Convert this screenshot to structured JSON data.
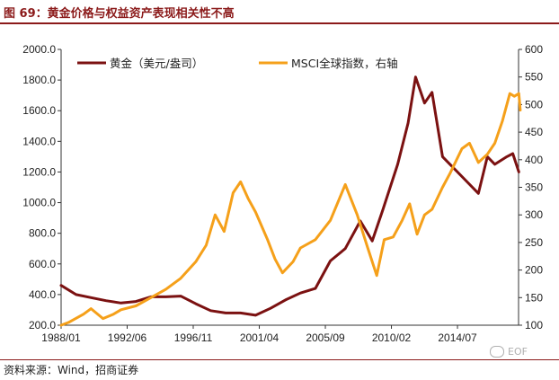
{
  "figure": {
    "title": "图 69：黄金价格与权益资产表现相关性不高",
    "source": "资料来源：Wind，招商证券",
    "watermark": "EOF"
  },
  "colors": {
    "gold": "#7b1111",
    "msci": "#f5a01a",
    "accent": "#8b1a1a"
  },
  "chart_data": {
    "type": "line",
    "title": "",
    "x_tick_labels": [
      "1988/01",
      "1992/06",
      "1996/11",
      "2001/04",
      "2005/09",
      "2010/02",
      "2014/07"
    ],
    "xlim": [
      "1988/01",
      "2018/08"
    ],
    "y_left": {
      "ylim": [
        200,
        2000
      ],
      "ticks": [
        "200.0",
        "400.0",
        "600.0",
        "800.0",
        "1000.0",
        "1200.0",
        "1400.0",
        "1600.0",
        "1800.0",
        "2000.0"
      ]
    },
    "y_right": {
      "ylim": [
        100,
        600
      ],
      "ticks": [
        "100",
        "150",
        "200",
        "250",
        "300",
        "350",
        "400",
        "450",
        "500",
        "550",
        "600"
      ]
    },
    "legend_position": "top-left",
    "series": [
      {
        "name": "黄金（美元/盎司）",
        "axis": "left",
        "x": [
          1988.0,
          1989.0,
          1990.0,
          1991.0,
          1992.0,
          1993.0,
          1994.0,
          1995.0,
          1996.0,
          1997.0,
          1998.0,
          1999.0,
          2000.0,
          2001.0,
          2002.0,
          2003.0,
          2004.0,
          2005.0,
          2006.0,
          2007.0,
          2008.0,
          2008.8,
          2009.5,
          2010.5,
          2011.2,
          2011.7,
          2012.3,
          2012.8,
          2013.5,
          2014.0,
          2015.0,
          2015.9,
          2016.5,
          2017.0,
          2017.8,
          2018.2,
          2018.6
        ],
        "y": [
          460,
          400,
          380,
          360,
          345,
          355,
          385,
          385,
          390,
          340,
          295,
          280,
          280,
          265,
          310,
          365,
          410,
          440,
          620,
          700,
          880,
          750,
          950,
          1250,
          1520,
          1820,
          1650,
          1720,
          1300,
          1250,
          1150,
          1060,
          1300,
          1250,
          1300,
          1320,
          1200
        ]
      },
      {
        "name": "MSCI全球指数，右轴",
        "axis": "right",
        "x": [
          1988.0,
          1988.5,
          1989.5,
          1990.0,
          1990.8,
          1991.5,
          1992.0,
          1993.0,
          1994.0,
          1995.0,
          1996.0,
          1997.0,
          1997.7,
          1998.3,
          1998.9,
          1999.5,
          2000.0,
          2000.5,
          2001.0,
          2001.8,
          2002.3,
          2002.8,
          2003.5,
          2004.0,
          2005.0,
          2006.0,
          2007.0,
          2007.8,
          2008.5,
          2009.1,
          2009.6,
          2010.2,
          2010.8,
          2011.3,
          2011.8,
          2012.3,
          2012.8,
          2013.5,
          2014.0,
          2014.8,
          2015.3,
          2015.9,
          2016.5,
          2017.0,
          2017.5,
          2018.0,
          2018.3,
          2018.6,
          2018.7
        ],
        "y": [
          100,
          105,
          120,
          130,
          112,
          120,
          128,
          135,
          150,
          165,
          185,
          215,
          245,
          300,
          270,
          340,
          360,
          330,
          305,
          255,
          220,
          195,
          215,
          240,
          255,
          290,
          355,
          300,
          240,
          190,
          255,
          260,
          290,
          320,
          265,
          300,
          310,
          350,
          375,
          420,
          430,
          395,
          410,
          430,
          470,
          520,
          515,
          520,
          490
        ]
      }
    ]
  }
}
